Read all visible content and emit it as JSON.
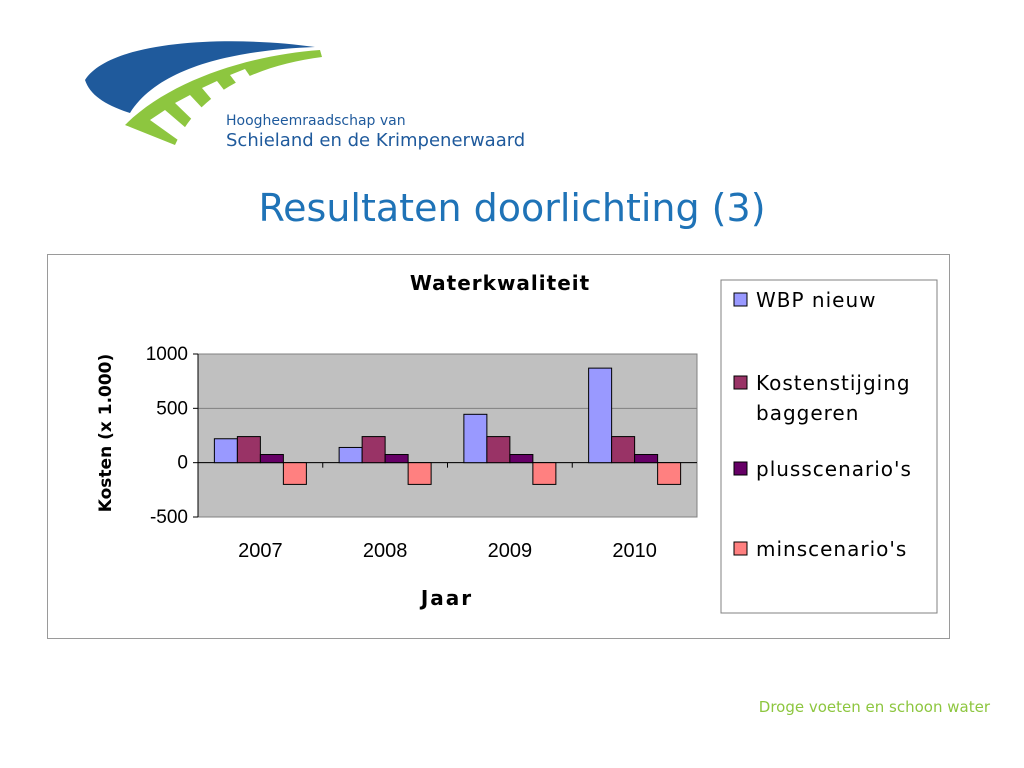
{
  "organization": {
    "line1": "Hoogheemraadschap van",
    "line2": "Schieland en de Krimpenerwaard"
  },
  "slide": {
    "title": "Resultaten doorlichting (3)",
    "footer": "Droge voeten en schoon water"
  },
  "colors": {
    "title_blue": "#1f73b7",
    "logo_blue": "#1f5a9c",
    "logo_green": "#8dc63f",
    "plot_background": "#c0c0c0"
  },
  "chart_data": {
    "type": "bar",
    "title": "Waterkwaliteit",
    "xlabel": "Jaar",
    "ylabel": "Kosten (x 1.000)",
    "categories": [
      "2007",
      "2008",
      "2009",
      "2010"
    ],
    "ylim": [
      -500,
      1000
    ],
    "yticks": [
      1000,
      500,
      0,
      -500
    ],
    "grid": true,
    "legend_position": "right",
    "series": [
      {
        "name": "WBP nieuw",
        "values": [
          220,
          140,
          445,
          870
        ],
        "color": "#9999ff"
      },
      {
        "name": "Kostenstijging baggeren",
        "values": [
          240,
          240,
          240,
          240
        ],
        "color": "#993366"
      },
      {
        "name": "plusscenario's",
        "values": [
          75,
          75,
          75,
          75
        ],
        "color": "#660066"
      },
      {
        "name": "minscenario's",
        "values": [
          -200,
          -200,
          -200,
          -200
        ],
        "color": "#ff8080"
      }
    ]
  }
}
